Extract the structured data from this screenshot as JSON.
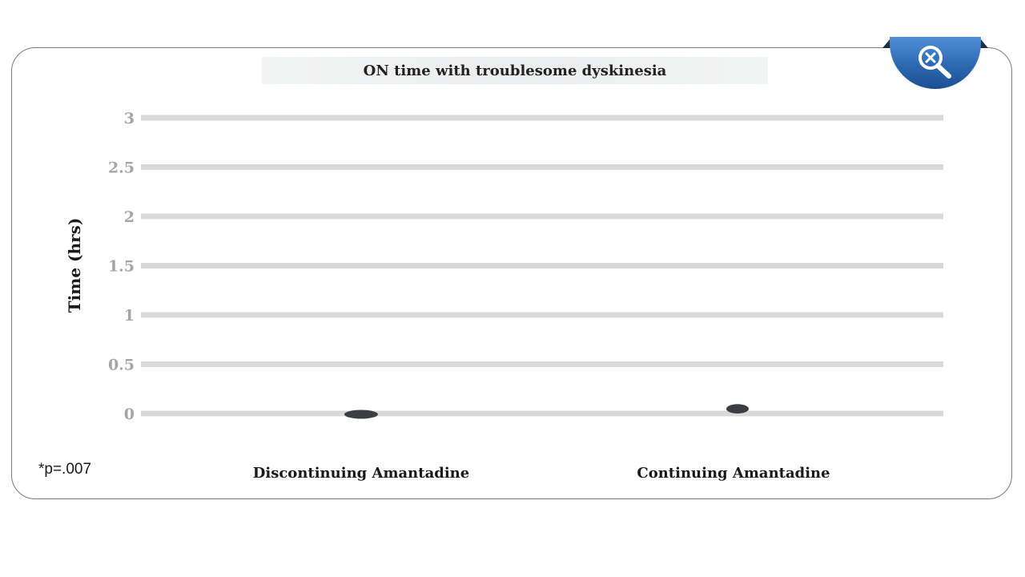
{
  "chart_data": {
    "type": "bar",
    "title": "ON time with troublesome dyskinesia",
    "xlabel": "",
    "ylabel": "Time (hrs)",
    "ylim": [
      0,
      3
    ],
    "yticks": [
      "0",
      "0.5",
      "1",
      "1.5",
      "2",
      "2.5",
      "3"
    ],
    "categories": [
      "Discontinuing Amantadine",
      "Continuing Amantadine"
    ],
    "values": [
      0.0,
      0.03
    ],
    "grid": true,
    "bar_color": "#3d3e42",
    "gridline_color": "#d9d9d9"
  },
  "footnote": "*p=.007",
  "zoom_button": {
    "icon": "zoom-out-icon",
    "color": "#2f6db3"
  }
}
